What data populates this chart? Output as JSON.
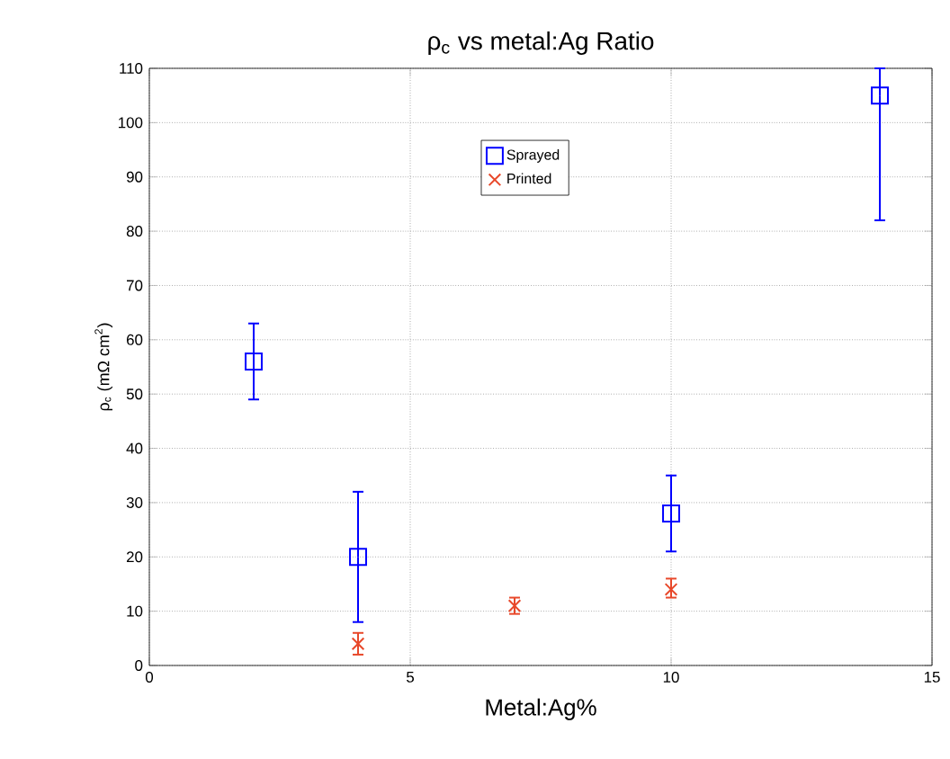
{
  "chart_data": {
    "type": "scatter",
    "title": "ρ$_{c}$ vs metal:Ag Ratio",
    "xlabel": "Metal:Ag%",
    "ylabel": "ρ$_{c}$ (mΩ cm$^{2}$)",
    "series": [
      {
        "name": "Sprayed",
        "color": "#0000ff",
        "marker": "square",
        "x": [
          2,
          4,
          10,
          14
        ],
        "values": [
          56,
          20,
          28,
          105
        ],
        "errors": [
          [
            49,
            63
          ],
          [
            8,
            32
          ],
          [
            21,
            35
          ],
          [
            82,
            110
          ]
        ]
      },
      {
        "name": "Printed",
        "color": "#e8482a",
        "marker": "cross",
        "x": [
          4,
          7,
          10
        ],
        "values": [
          4,
          11,
          14
        ],
        "errors": [
          [
            2,
            6
          ],
          [
            9.5,
            12.5
          ],
          [
            12.5,
            16
          ]
        ]
      }
    ],
    "xlim": [
      0,
      15
    ],
    "xticks": [
      0,
      5,
      10,
      15
    ],
    "ylim": [
      0,
      110
    ],
    "yticks": [
      0,
      10,
      20,
      30,
      40,
      50,
      60,
      70,
      80,
      90,
      100,
      110
    ],
    "grid": true,
    "legend": "top"
  }
}
